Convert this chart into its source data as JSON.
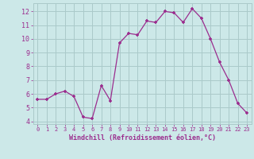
{
  "x": [
    0,
    1,
    2,
    3,
    4,
    5,
    6,
    7,
    8,
    9,
    10,
    11,
    12,
    13,
    14,
    15,
    16,
    17,
    18,
    19,
    20,
    21,
    22,
    23
  ],
  "y": [
    5.6,
    5.6,
    6.0,
    6.2,
    5.8,
    4.3,
    4.2,
    6.6,
    5.5,
    9.7,
    10.4,
    10.3,
    11.3,
    11.2,
    12.0,
    11.9,
    11.2,
    12.2,
    11.5,
    10.0,
    8.3,
    7.0,
    5.3,
    4.6
  ],
  "line_color": "#9b2d8e",
  "marker": "+",
  "bg_color": "#cce8e8",
  "grid_color": "#aacaca",
  "xlabel": "Windchill (Refroidissement éolien,°C)",
  "xlabel_color": "#9b2d8e",
  "ylabel_ticks": [
    4,
    5,
    6,
    7,
    8,
    9,
    10,
    11,
    12
  ],
  "xlim": [
    -0.5,
    23.5
  ],
  "ylim": [
    3.8,
    12.6
  ],
  "tick_label_color": "#9b2d8e",
  "font_size": 8
}
